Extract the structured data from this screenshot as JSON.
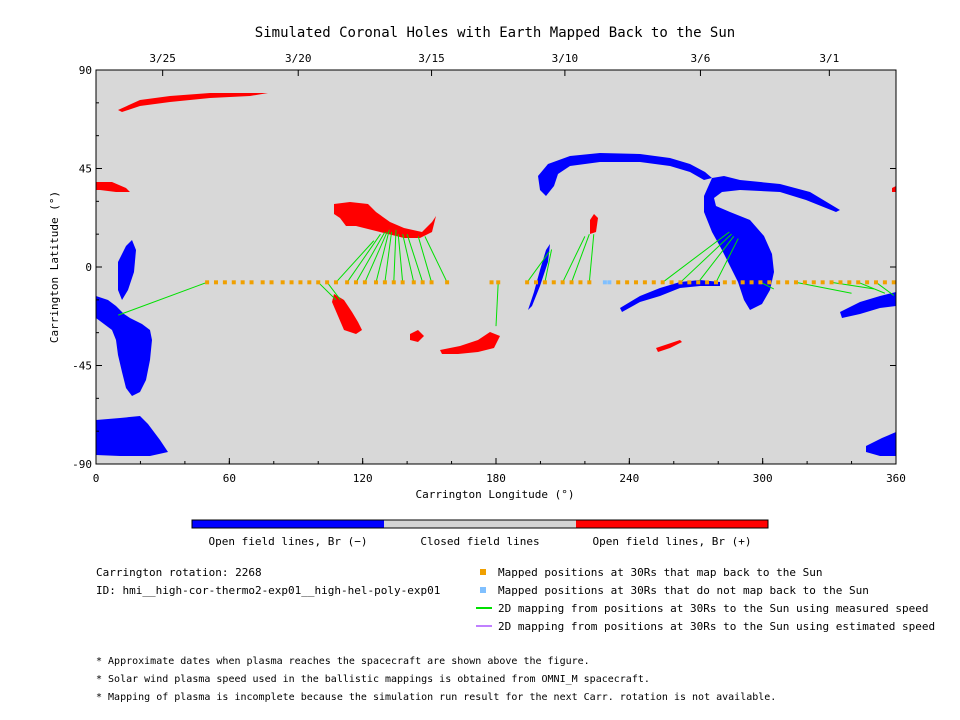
{
  "chart_data": {
    "type": "scatter",
    "title": "Simulated Coronal Holes with Earth Mapped Back to the Sun",
    "xlabel": "Carrington Longitude (°)",
    "ylabel": "Carrington Latitude (°)",
    "xlim": [
      0,
      360
    ],
    "ylim": [
      -90,
      90
    ],
    "x_ticks": [
      "0",
      "60",
      "120",
      "180",
      "240",
      "300",
      "360"
    ],
    "y_ticks": [
      "90",
      "45",
      "0",
      "-45",
      "-90"
    ],
    "top_axis_dates": [
      {
        "label": "3/25",
        "lon": 30
      },
      {
        "label": "3/20",
        "lon": 91
      },
      {
        "label": "3/15",
        "lon": 151
      },
      {
        "label": "3/10",
        "lon": 211
      },
      {
        "label": "3/6",
        "lon": 272
      },
      {
        "label": "3/1",
        "lon": 330
      }
    ],
    "colorbar": {
      "labels": [
        "Open field lines, Br (−)",
        "Closed field lines",
        "Open field lines, Br (+)"
      ],
      "colors": [
        "#0000ff",
        "#d3d3d3",
        "#ff0000"
      ]
    },
    "series": [
      {
        "name": "Mapped positions at 30Rs that map back to the Sun",
        "color": "#f0a000",
        "lon": [
          50,
          54,
          58,
          62,
          66,
          70,
          75,
          79,
          84,
          88,
          92,
          96,
          100,
          104,
          108,
          113,
          117,
          121,
          126,
          130,
          134,
          138,
          143,
          147,
          151,
          158,
          178,
          181,
          194,
          198,
          202,
          206,
          210,
          214,
          218,
          222,
          235,
          239,
          243,
          247,
          251,
          255,
          259,
          263,
          267,
          271,
          275,
          279,
          283,
          287,
          291,
          295,
          299,
          303,
          307,
          311,
          315,
          319,
          323,
          327,
          331,
          335,
          339,
          343,
          347,
          351,
          355,
          359
        ],
        "lat": [
          -7,
          -7,
          -7,
          -7,
          -7,
          -7,
          -7,
          -7,
          -7,
          -7,
          -7,
          -7,
          -7,
          -7,
          -7,
          -7,
          -7,
          -7,
          -7,
          -7,
          -7,
          -7,
          -7,
          -7,
          -7,
          -7,
          -7,
          -7,
          -7,
          -7,
          -7,
          -7,
          -7,
          -7,
          -7,
          -7,
          -7,
          -7,
          -7,
          -7,
          -7,
          -7,
          -7,
          -7,
          -7,
          -7,
          -7,
          -7,
          -7,
          -7,
          -7,
          -7,
          -7,
          -7,
          -7,
          -7,
          -7,
          -7,
          -7,
          -7,
          -7,
          -7,
          -7,
          -7,
          -7,
          -7,
          -7,
          -7
        ]
      },
      {
        "name": "Mapped positions at 30Rs that do not map back to the Sun",
        "color": "#80c0ff",
        "lon": [
          229,
          231
        ],
        "lat": [
          -7,
          -7
        ]
      }
    ],
    "mapping_lines": [
      {
        "from": [
          50,
          -7
        ],
        "to": [
          10,
          -22
        ]
      },
      {
        "from": [
          100,
          -7
        ],
        "to": [
          108,
          -15
        ]
      },
      {
        "from": [
          104,
          -7
        ],
        "to": [
          110,
          -15
        ]
      },
      {
        "from": [
          108,
          -7
        ],
        "to": [
          125,
          12
        ]
      },
      {
        "from": [
          113,
          -7
        ],
        "to": [
          128,
          15
        ]
      },
      {
        "from": [
          117,
          -7
        ],
        "to": [
          130,
          16
        ]
      },
      {
        "from": [
          121,
          -7
        ],
        "to": [
          131,
          16
        ]
      },
      {
        "from": [
          126,
          -7
        ],
        "to": [
          132,
          17
        ]
      },
      {
        "from": [
          130,
          -7
        ],
        "to": [
          133,
          16
        ]
      },
      {
        "from": [
          134,
          -7
        ],
        "to": [
          135,
          17
        ]
      },
      {
        "from": [
          138,
          -7
        ],
        "to": [
          136,
          15
        ]
      },
      {
        "from": [
          143,
          -7
        ],
        "to": [
          138,
          15
        ]
      },
      {
        "from": [
          147,
          -7
        ],
        "to": [
          140,
          15
        ]
      },
      {
        "from": [
          151,
          -7
        ],
        "to": [
          145,
          14
        ]
      },
      {
        "from": [
          158,
          -7
        ],
        "to": [
          148,
          14
        ]
      },
      {
        "from": [
          181,
          -7
        ],
        "to": [
          180,
          -27
        ]
      },
      {
        "from": [
          194,
          -7
        ],
        "to": [
          204,
          7
        ]
      },
      {
        "from": [
          202,
          -7
        ],
        "to": [
          205,
          8
        ]
      },
      {
        "from": [
          210,
          -7
        ],
        "to": [
          220,
          14
        ]
      },
      {
        "from": [
          214,
          -7
        ],
        "to": [
          222,
          15
        ]
      },
      {
        "from": [
          222,
          -7
        ],
        "to": [
          224,
          15
        ]
      },
      {
        "from": [
          255,
          -7
        ],
        "to": [
          285,
          16
        ]
      },
      {
        "from": [
          263,
          -7
        ],
        "to": [
          286,
          15
        ]
      },
      {
        "from": [
          271,
          -7
        ],
        "to": [
          287,
          14
        ]
      },
      {
        "from": [
          279,
          -7
        ],
        "to": [
          289,
          13
        ]
      },
      {
        "from": [
          299,
          -7
        ],
        "to": [
          305,
          -10
        ]
      },
      {
        "from": [
          315,
          -7
        ],
        "to": [
          340,
          -12
        ]
      },
      {
        "from": [
          331,
          -7
        ],
        "to": [
          350,
          -10
        ]
      },
      {
        "from": [
          343,
          -7
        ],
        "to": [
          355,
          -12
        ]
      },
      {
        "from": [
          351,
          -7
        ],
        "to": [
          359,
          -13
        ]
      }
    ]
  },
  "legend": {
    "items": [
      {
        "label": "Mapped positions at 30Rs that map back to the Sun",
        "color": "#f0a000",
        "kind": "square"
      },
      {
        "label": "Mapped positions at 30Rs that do not map back to the Sun",
        "color": "#80c0ff",
        "kind": "square"
      },
      {
        "label": "2D mapping from positions at 30Rs to the Sun using measured speed",
        "color": "#00e000",
        "kind": "line"
      },
      {
        "label": "2D mapping from positions at 30Rs to the Sun using estimated speed",
        "color": "#c080ff",
        "kind": "line"
      }
    ]
  },
  "info": {
    "rotation": "Carrington rotation: 2268",
    "id": "ID: hmi__high-cor-thermo2-exp01__high-hel-poly-exp01"
  },
  "notes": [
    "* Approximate dates when plasma reaches the spacecraft are shown above the figure.",
    "* Solar wind plasma speed used in the ballistic mappings is obtained from OMNI_M spacecraft.",
    "* Mapping of plasma is incomplete because the simulation run result for the next Carr. rotation is not available."
  ]
}
